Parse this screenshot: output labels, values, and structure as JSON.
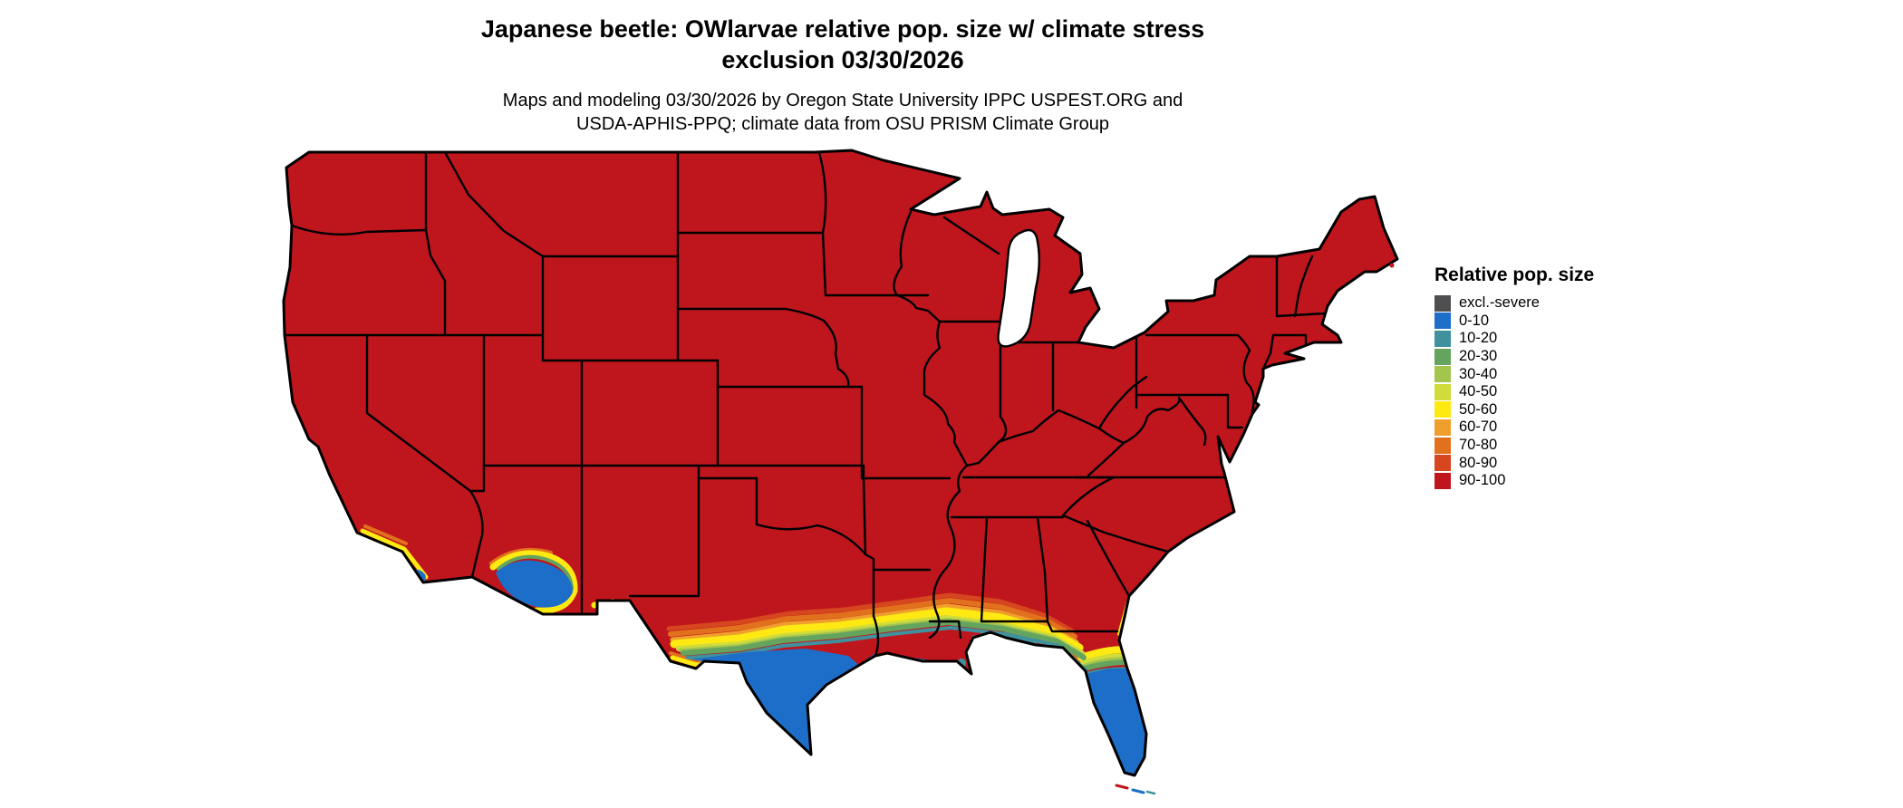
{
  "header": {
    "title_line1": "Japanese beetle: OWlarvae relative pop. size w/ climate stress",
    "title_line2": "exclusion 03/30/2026",
    "subtitle_line1": "Maps and modeling 03/30/2026 by Oregon State University IPPC USPEST.ORG and",
    "subtitle_line2": "USDA-APHIS-PPQ; climate data from OSU PRISM Climate Group"
  },
  "legend": {
    "title": "Relative pop. size",
    "items": [
      {
        "label": "excl.-severe",
        "color": "#4e4e50"
      },
      {
        "label": "0-10",
        "color": "#1d6ec8"
      },
      {
        "label": "10-20",
        "color": "#40919e"
      },
      {
        "label": "20-30",
        "color": "#64a45e"
      },
      {
        "label": "30-40",
        "color": "#a3c44d"
      },
      {
        "label": "40-50",
        "color": "#cfdc3c"
      },
      {
        "label": "50-60",
        "color": "#ffe912"
      },
      {
        "label": "60-70",
        "color": "#efa02c"
      },
      {
        "label": "70-80",
        "color": "#e2711d"
      },
      {
        "label": "80-90",
        "color": "#d6461f"
      },
      {
        "label": "90-100",
        "color": "#bf161d"
      }
    ]
  },
  "map_colors": {
    "outline": "#000000",
    "water": "#ffffff"
  }
}
